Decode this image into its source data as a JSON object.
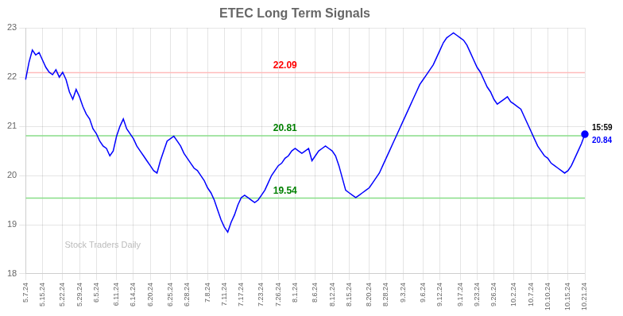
{
  "chart_data": {
    "type": "line",
    "title": "ETEC Long Term Signals",
    "categories": [
      "5.7.24",
      null,
      null,
      null,
      null,
      "5.15.24",
      null,
      null,
      null,
      null,
      null,
      "5.22.24",
      null,
      null,
      null,
      null,
      "5.29.24",
      null,
      null,
      null,
      null,
      "6.5.24",
      null,
      null,
      null,
      null,
      null,
      "6.11.24",
      null,
      null,
      null,
      null,
      "6.14.24",
      null,
      null,
      null,
      null,
      "6.20.24",
      null,
      null,
      null,
      null,
      null,
      "6.25.24",
      null,
      null,
      null,
      null,
      "6.28.24",
      null,
      null,
      null,
      null,
      null,
      "7.8.24",
      null,
      null,
      null,
      null,
      "7.11.24",
      null,
      null,
      null,
      null,
      "7.17.24",
      null,
      null,
      null,
      null,
      null,
      "7.23.24",
      null,
      null,
      null,
      null,
      "7.26.24",
      null,
      null,
      null,
      null,
      "8.1.24",
      null,
      null,
      null,
      null,
      null,
      "8.6.24",
      null,
      null,
      null,
      null,
      "8.12.24",
      null,
      null,
      null,
      null,
      "8.15.24",
      null,
      null,
      null,
      null,
      null,
      "8.20.24",
      null,
      null,
      null,
      null,
      "8.28.24",
      null,
      null,
      null,
      null,
      "9.3.24",
      null,
      null,
      null,
      null,
      null,
      "9.6.24",
      null,
      null,
      null,
      null,
      "9.12.24",
      null,
      null,
      null,
      null,
      null,
      "9.17.24",
      null,
      null,
      null,
      null,
      "9.23.24",
      null,
      null,
      null,
      null,
      "9.26.24",
      null,
      null,
      null,
      null,
      null,
      "10.2.24",
      null,
      null,
      null,
      null,
      "10.7.24",
      null,
      null,
      null,
      null,
      "10.10.24",
      null,
      null,
      null,
      null,
      null,
      "10.15.24",
      null,
      null,
      null,
      null,
      "10.21.24"
    ],
    "values": [
      21.95,
      22.3,
      22.55,
      22.45,
      22.5,
      22.35,
      22.2,
      22.1,
      22.05,
      22.15,
      22.0,
      22.1,
      21.95,
      21.7,
      21.55,
      21.75,
      21.6,
      21.4,
      21.25,
      21.15,
      20.95,
      20.85,
      20.7,
      20.6,
      20.55,
      20.4,
      20.5,
      20.8,
      21.0,
      21.15,
      20.95,
      20.85,
      20.75,
      20.6,
      20.5,
      20.4,
      20.3,
      20.2,
      20.1,
      20.05,
      20.3,
      20.5,
      20.7,
      20.75,
      20.8,
      20.7,
      20.6,
      20.45,
      20.35,
      20.25,
      20.15,
      20.1,
      20.0,
      19.9,
      19.75,
      19.65,
      19.5,
      19.3,
      19.1,
      18.95,
      18.85,
      19.05,
      19.2,
      19.4,
      19.55,
      19.6,
      19.55,
      19.5,
      19.45,
      19.5,
      19.6,
      19.7,
      19.85,
      20.0,
      20.1,
      20.2,
      20.25,
      20.35,
      20.4,
      20.5,
      20.55,
      20.5,
      20.45,
      20.5,
      20.55,
      20.3,
      20.4,
      20.5,
      20.55,
      20.6,
      20.55,
      20.5,
      20.4,
      20.2,
      19.95,
      19.7,
      19.65,
      19.6,
      19.55,
      19.6,
      19.65,
      19.7,
      19.75,
      19.85,
      19.95,
      20.05,
      20.2,
      20.35,
      20.5,
      20.65,
      20.8,
      20.95,
      21.1,
      21.25,
      21.4,
      21.55,
      21.7,
      21.85,
      21.95,
      22.05,
      22.15,
      22.25,
      22.4,
      22.55,
      22.7,
      22.8,
      22.85,
      22.9,
      22.85,
      22.8,
      22.75,
      22.65,
      22.5,
      22.35,
      22.2,
      22.1,
      21.95,
      21.8,
      21.7,
      21.55,
      21.45,
      21.5,
      21.55,
      21.6,
      21.5,
      21.45,
      21.4,
      21.35,
      21.2,
      21.05,
      20.9,
      20.75,
      20.6,
      20.5,
      20.4,
      20.35,
      20.25,
      20.2,
      20.15,
      20.1,
      20.05,
      20.1,
      20.2,
      20.35,
      20.5,
      20.65,
      20.84
    ],
    "color": "blue",
    "ylim": [
      18,
      23
    ],
    "yticks": [
      18,
      19,
      20,
      21,
      22,
      23
    ],
    "grid": true,
    "reference_lines": [
      {
        "value": 22.09,
        "color": "#ffbbbb",
        "label": "22.09",
        "label_color": "red"
      },
      {
        "value": 20.81,
        "color": "#88dd88",
        "label": "20.81",
        "label_color": "green"
      },
      {
        "value": 19.54,
        "color": "#88dd88",
        "label": "19.54",
        "label_color": "green"
      }
    ],
    "last_point": {
      "color": "blue",
      "labels": [
        {
          "text": "15:59",
          "color": "black"
        },
        {
          "text": "20.84",
          "color": "blue"
        }
      ]
    },
    "watermark": {
      "text": "Stock Traders Daily",
      "color": "#aaaaaa"
    }
  }
}
